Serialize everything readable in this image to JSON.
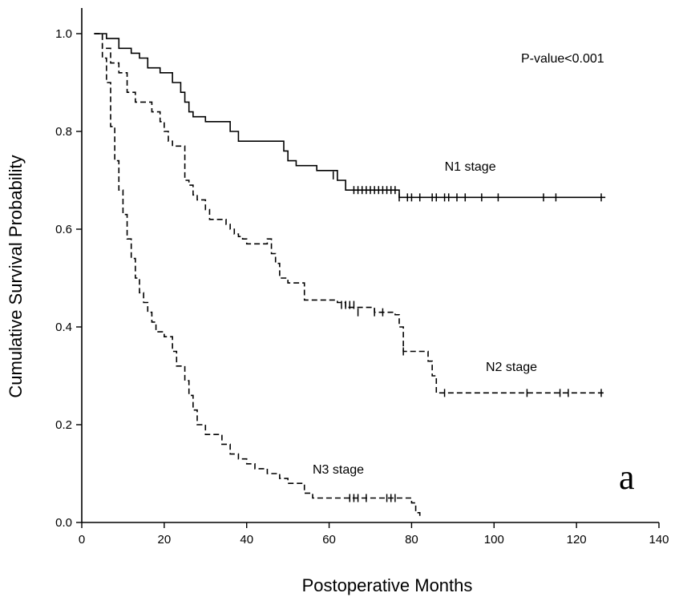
{
  "chart_data": {
    "type": "line",
    "xlabel": "Postoperative Months",
    "ylabel": "Cumulative Survival Probability",
    "xlim": [
      0,
      140
    ],
    "ylim": [
      0,
      1
    ],
    "xticks": [
      "0",
      "20",
      "40",
      "60",
      "80",
      "100",
      "120",
      "140"
    ],
    "yticks": [
      "0.0",
      "0.2",
      "0.4",
      "0.6",
      "0.8",
      "1.0"
    ],
    "grid": false,
    "annotations": {
      "p_value": "P-value<0.001",
      "panel": "a"
    },
    "series": [
      {
        "name": "N1 stage",
        "dash": "solid",
        "label_at": [
          88,
          0.72
        ],
        "x": [
          3,
          6,
          9,
          12,
          14,
          16,
          19,
          22,
          24,
          25,
          26,
          27,
          30,
          36,
          38,
          49,
          50,
          52,
          57,
          62,
          64,
          77,
          127
        ],
        "y": [
          1.0,
          0.99,
          0.97,
          0.96,
          0.95,
          0.93,
          0.92,
          0.9,
          0.88,
          0.86,
          0.84,
          0.83,
          0.82,
          0.8,
          0.78,
          0.76,
          0.74,
          0.73,
          0.72,
          0.7,
          0.68,
          0.665,
          0.665
        ],
        "censored": [
          [
            61,
            0.71
          ],
          [
            66,
            0.68
          ],
          [
            67,
            0.68
          ],
          [
            68,
            0.68
          ],
          [
            69,
            0.68
          ],
          [
            70,
            0.68
          ],
          [
            71,
            0.68
          ],
          [
            72,
            0.68
          ],
          [
            73,
            0.68
          ],
          [
            74,
            0.68
          ],
          [
            75,
            0.68
          ],
          [
            76,
            0.68
          ],
          [
            77,
            0.665
          ],
          [
            79,
            0.665
          ],
          [
            80,
            0.665
          ],
          [
            82,
            0.665
          ],
          [
            85,
            0.665
          ],
          [
            86,
            0.665
          ],
          [
            88,
            0.665
          ],
          [
            89,
            0.665
          ],
          [
            91,
            0.665
          ],
          [
            93,
            0.665
          ],
          [
            97,
            0.665
          ],
          [
            101,
            0.665
          ],
          [
            112,
            0.665
          ],
          [
            115,
            0.665
          ],
          [
            126,
            0.665
          ]
        ]
      },
      {
        "name": "N2 stage",
        "dash": "dashed",
        "label_at": [
          98,
          0.31
        ],
        "x": [
          3,
          5,
          7,
          9,
          11,
          13,
          17,
          19,
          20,
          21,
          22,
          25,
          26,
          27,
          28,
          30,
          31,
          35,
          36,
          37,
          38,
          39,
          40,
          45,
          46,
          47,
          48,
          50,
          54,
          62,
          64,
          71,
          76,
          77,
          78,
          84,
          85,
          86,
          127
        ],
        "y": [
          1.0,
          0.97,
          0.94,
          0.92,
          0.88,
          0.86,
          0.84,
          0.82,
          0.8,
          0.78,
          0.77,
          0.7,
          0.69,
          0.67,
          0.66,
          0.64,
          0.62,
          0.61,
          0.6,
          0.59,
          0.585,
          0.58,
          0.57,
          0.58,
          0.55,
          0.53,
          0.5,
          0.49,
          0.455,
          0.45,
          0.44,
          0.43,
          0.425,
          0.4,
          0.35,
          0.33,
          0.3,
          0.265,
          0.265
        ],
        "censored": [
          [
            63,
            0.445
          ],
          [
            64,
            0.445
          ],
          [
            65,
            0.445
          ],
          [
            66,
            0.445
          ],
          [
            67,
            0.43
          ],
          [
            71,
            0.43
          ],
          [
            73,
            0.43
          ],
          [
            78,
            0.35
          ],
          [
            88,
            0.265
          ],
          [
            108,
            0.265
          ],
          [
            116,
            0.265
          ],
          [
            118,
            0.265
          ],
          [
            126,
            0.265
          ]
        ]
      },
      {
        "name": "N3 stage",
        "dash": "dashed",
        "label_at": [
          56,
          0.1
        ],
        "x": [
          3,
          5,
          6,
          7,
          8,
          9,
          10,
          11,
          12,
          13,
          14,
          15,
          16,
          17,
          18,
          20,
          22,
          23,
          25,
          26,
          27,
          28,
          30,
          34,
          36,
          38,
          40,
          42,
          45,
          48,
          50,
          54,
          56,
          62,
          77,
          80,
          81,
          82
        ],
        "y": [
          1.0,
          0.95,
          0.9,
          0.81,
          0.74,
          0.68,
          0.63,
          0.58,
          0.54,
          0.5,
          0.47,
          0.45,
          0.43,
          0.41,
          0.39,
          0.38,
          0.35,
          0.32,
          0.29,
          0.26,
          0.23,
          0.2,
          0.18,
          0.16,
          0.14,
          0.13,
          0.12,
          0.11,
          0.1,
          0.09,
          0.08,
          0.06,
          0.05,
          0.05,
          0.05,
          0.04,
          0.02,
          0.01
        ],
        "censored": [
          [
            65,
            0.05
          ],
          [
            66,
            0.05
          ],
          [
            67,
            0.05
          ],
          [
            69,
            0.05
          ],
          [
            74,
            0.05
          ],
          [
            75,
            0.05
          ],
          [
            76,
            0.05
          ]
        ]
      }
    ]
  }
}
